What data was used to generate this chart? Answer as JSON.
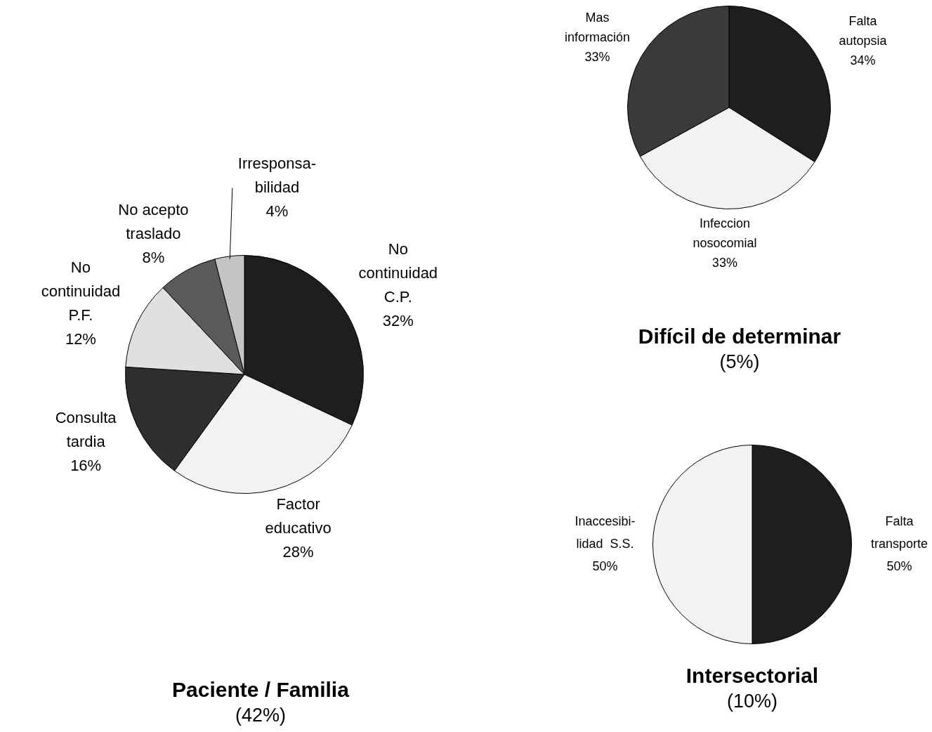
{
  "chart_data": [
    {
      "type": "pie",
      "title": "Paciente / Familia",
      "subtitle": "(42%)",
      "categories": [
        "No\ncontinuidad\nC.P.",
        "Factor\neducativo",
        "Consulta\ntardia",
        "No\ncontinuidad\nP.F.",
        "No acepto\ntraslado",
        "Irresponsa-\nbilidad"
      ],
      "values": [
        32,
        28,
        16,
        12,
        8,
        4
      ],
      "value_labels": [
        "32%",
        "28%",
        "16%",
        "12%",
        "8%",
        "4%"
      ],
      "colors": [
        "#1e1e1e",
        "#f2f2f2",
        "#2e2e2e",
        "#e0e0e0",
        "#5a5a5a",
        "#c4c4c4"
      ]
    },
    {
      "type": "pie",
      "title": "Difícil de determinar",
      "subtitle": "(5%)",
      "categories": [
        "Falta\nautopsia",
        "Infeccion\nnosocomial",
        "Mas\ninformación"
      ],
      "values": [
        34,
        33,
        33
      ],
      "value_labels": [
        "34%",
        "33%",
        "33%"
      ],
      "colors": [
        "#1e1e1e",
        "#f2f2f2",
        "#3a3a3a"
      ]
    },
    {
      "type": "pie",
      "title": "Intersectorial",
      "subtitle": "(10%)",
      "categories": [
        "Falta\ntransporte",
        "Inaccesibi-\nlidad  S.S."
      ],
      "values": [
        50,
        50
      ],
      "value_labels": [
        "50%",
        "50%"
      ],
      "colors": [
        "#1e1e1e",
        "#f2f2f2"
      ]
    }
  ]
}
